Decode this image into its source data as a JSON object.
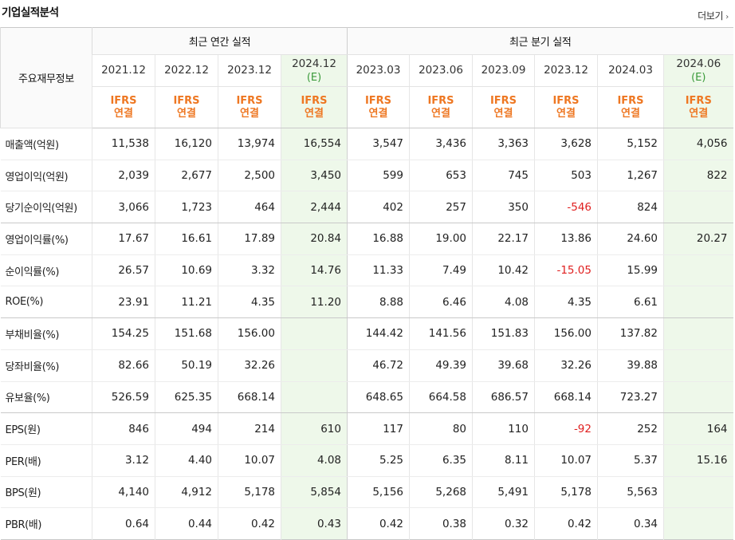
{
  "section": {
    "title": "기업실적분석",
    "more_label": "더보기"
  },
  "table": {
    "corner_label": "주요재무정보",
    "group_headers": [
      "최근 연간 실적",
      "최근 분기 실적"
    ],
    "periods": [
      {
        "label": "2021.12",
        "est": ""
      },
      {
        "label": "2022.12",
        "est": ""
      },
      {
        "label": "2023.12",
        "est": ""
      },
      {
        "label": "2024.12",
        "est": "(E)"
      },
      {
        "label": "2023.03",
        "est": ""
      },
      {
        "label": "2023.06",
        "est": ""
      },
      {
        "label": "2023.09",
        "est": ""
      },
      {
        "label": "2023.12",
        "est": ""
      },
      {
        "label": "2024.03",
        "est": ""
      },
      {
        "label": "2024.06",
        "est": "(E)"
      }
    ],
    "ifrs_line1": "IFRS",
    "ifrs_line2": "연결",
    "rows": [
      {
        "label": "매출액(억원)",
        "values": [
          "11,538",
          "16,120",
          "13,974",
          "16,554",
          "3,547",
          "3,436",
          "3,363",
          "3,628",
          "5,152",
          "4,056"
        ]
      },
      {
        "label": "영업이익(억원)",
        "values": [
          "2,039",
          "2,677",
          "2,500",
          "3,450",
          "599",
          "653",
          "745",
          "503",
          "1,267",
          "822"
        ]
      },
      {
        "label": "당기순이익(억원)",
        "values": [
          "3,066",
          "1,723",
          "464",
          "2,444",
          "402",
          "257",
          "350",
          "-546",
          "824",
          ""
        ]
      },
      {
        "label": "영업이익률(%)",
        "values": [
          "17.67",
          "16.61",
          "17.89",
          "20.84",
          "16.88",
          "19.00",
          "22.17",
          "13.86",
          "24.60",
          "20.27"
        ]
      },
      {
        "label": "순이익률(%)",
        "values": [
          "26.57",
          "10.69",
          "3.32",
          "14.76",
          "11.33",
          "7.49",
          "10.42",
          "-15.05",
          "15.99",
          ""
        ]
      },
      {
        "label": "ROE(%)",
        "values": [
          "23.91",
          "11.21",
          "4.35",
          "11.20",
          "8.88",
          "6.46",
          "4.08",
          "4.35",
          "6.61",
          ""
        ]
      },
      {
        "label": "부채비율(%)",
        "values": [
          "154.25",
          "151.68",
          "156.00",
          "",
          "144.42",
          "141.56",
          "151.83",
          "156.00",
          "137.82",
          ""
        ]
      },
      {
        "label": "당좌비율(%)",
        "values": [
          "82.66",
          "50.19",
          "32.26",
          "",
          "46.72",
          "49.39",
          "39.68",
          "32.26",
          "39.88",
          ""
        ]
      },
      {
        "label": "유보율(%)",
        "values": [
          "526.59",
          "625.35",
          "668.14",
          "",
          "648.65",
          "664.58",
          "686.57",
          "668.14",
          "723.27",
          ""
        ]
      },
      {
        "label": "EPS(원)",
        "values": [
          "846",
          "494",
          "214",
          "610",
          "117",
          "80",
          "110",
          "-92",
          "252",
          "164"
        ]
      },
      {
        "label": "PER(배)",
        "values": [
          "3.12",
          "4.40",
          "10.07",
          "4.08",
          "5.25",
          "6.35",
          "8.11",
          "10.07",
          "5.37",
          "15.16"
        ]
      },
      {
        "label": "BPS(원)",
        "values": [
          "4,140",
          "4,912",
          "5,178",
          "5,854",
          "5,156",
          "5,268",
          "5,491",
          "5,178",
          "5,563",
          ""
        ]
      },
      {
        "label": "PBR(배)",
        "values": [
          "0.64",
          "0.44",
          "0.42",
          "0.43",
          "0.42",
          "0.38",
          "0.32",
          "0.42",
          "0.34",
          ""
        ]
      }
    ],
    "colors": {
      "negative": "#e02020",
      "ifrs": "#ee7722",
      "estimate_bg": "#eef8ea",
      "estimate_text": "#3a9a3a"
    }
  }
}
